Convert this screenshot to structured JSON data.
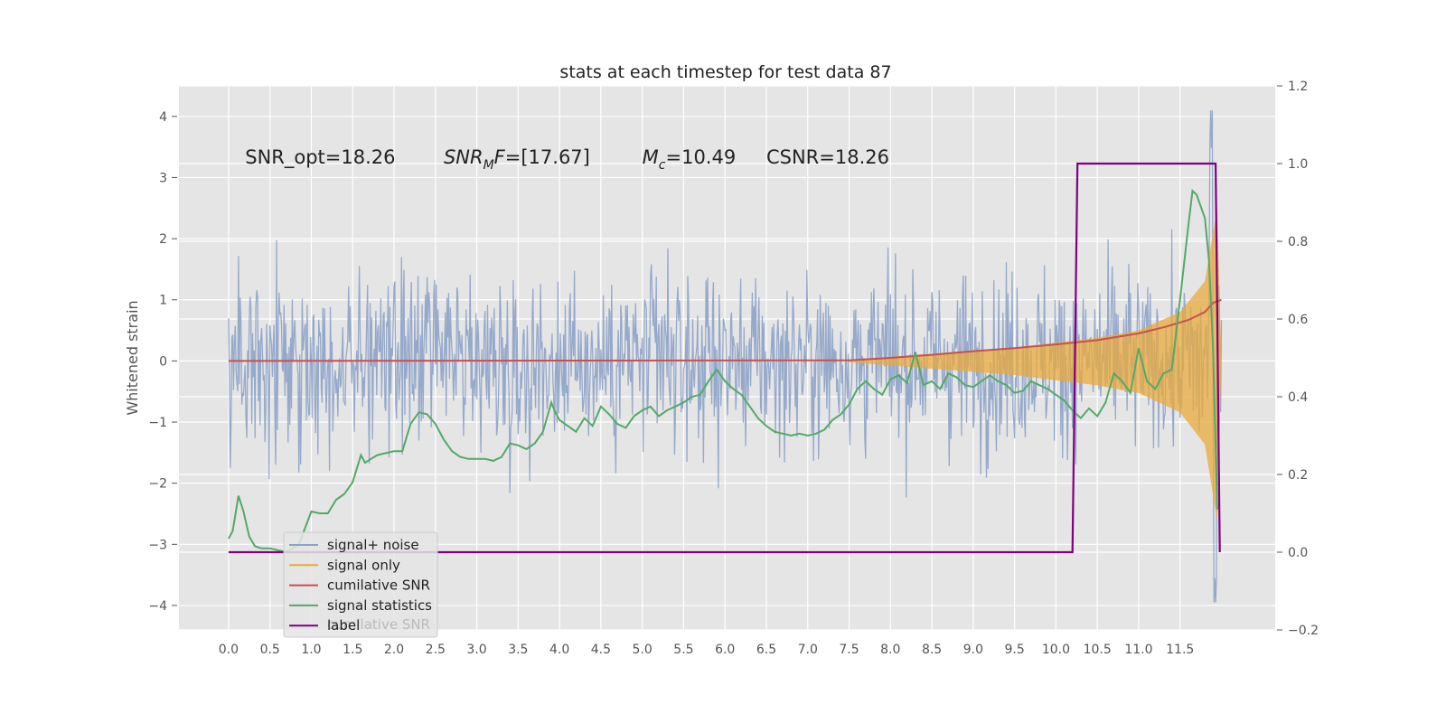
{
  "chart_data": {
    "type": "line",
    "title": "stats at each timestep for test data 87",
    "ylabel": "Whitened strain",
    "xlabel": "",
    "xlim": [
      -0.6,
      12.65
    ],
    "ylim": [
      -4.4,
      4.5
    ],
    "y2lim": [
      -0.2,
      1.2
    ],
    "xticks": [
      "0.0",
      "0.5",
      "1.0",
      "1.5",
      "2.0",
      "2.5",
      "3.0",
      "3.5",
      "4.0",
      "4.5",
      "5.0",
      "5.5",
      "6.0",
      "6.5",
      "7.0",
      "7.5",
      "8.0",
      "8.5",
      "9.0",
      "9.5",
      "10.0",
      "10.5",
      "11.0",
      "11.5"
    ],
    "yticks": [
      "4",
      "3",
      "2",
      "1",
      "0",
      "−1",
      "−2",
      "−3",
      "−4"
    ],
    "y2ticks": [
      "1.2",
      "1.0",
      "0.8",
      "0.6",
      "0.4",
      "0.2",
      "0.0",
      "−0.2"
    ],
    "grid": true,
    "legend_position": "lower-left",
    "annotations": [
      {
        "text": "SNR_opt=18.26",
        "x": 0.2,
        "y": 3.3
      },
      {
        "text": "SNR",
        "sub": "M",
        "tail": "F=[17.67]",
        "x": 2.6,
        "y": 3.3,
        "italic": true
      },
      {
        "text": "M",
        "sub": "c",
        "tail": "=10.49",
        "x": 5.0,
        "y": 3.3,
        "italic": true
      },
      {
        "text": "CSNR=18.26",
        "x": 6.5,
        "y": 3.3
      }
    ],
    "legend_ghost": "cumilative SNR",
    "series": [
      {
        "name": "signal+ noise",
        "axis": "left",
        "color": "#8da2c8",
        "envelope": {
          "x_range": [
            0.0,
            12.0
          ],
          "typical_amp": 1.8,
          "peak_max": 4.1,
          "peak_min": -3.95
        }
      },
      {
        "name": "signal only",
        "axis": "left",
        "color": "#e8a93c",
        "envelope_x": [
          7.5,
          8.5,
          9.5,
          10.0,
          10.5,
          11.0,
          11.5,
          11.8,
          11.95,
          12.0
        ],
        "envelope_amp": [
          0.02,
          0.12,
          0.22,
          0.3,
          0.38,
          0.5,
          0.8,
          1.3,
          2.5,
          0.0
        ]
      },
      {
        "name": "cumilative SNR",
        "axis": "left",
        "color": "#c9504d",
        "x": [
          0.0,
          7.5,
          8.0,
          8.5,
          9.0,
          9.5,
          10.0,
          10.5,
          11.0,
          11.3,
          11.6,
          11.8,
          11.9,
          12.0
        ],
        "y": [
          0.0,
          0.01,
          0.05,
          0.1,
          0.16,
          0.21,
          0.27,
          0.34,
          0.45,
          0.55,
          0.67,
          0.8,
          0.95,
          1.0
        ]
      },
      {
        "name": "signal statistics",
        "axis": "right",
        "color": "#55a868",
        "x": [
          0.0,
          0.05,
          0.12,
          0.18,
          0.25,
          0.32,
          0.4,
          0.5,
          0.6,
          0.7,
          0.85,
          1.0,
          1.1,
          1.2,
          1.3,
          1.4,
          1.5,
          1.6,
          1.65,
          1.72,
          1.8,
          1.9,
          2.0,
          2.1,
          2.2,
          2.3,
          2.4,
          2.5,
          2.6,
          2.7,
          2.8,
          2.9,
          3.0,
          3.1,
          3.2,
          3.3,
          3.4,
          3.5,
          3.6,
          3.7,
          3.8,
          3.9,
          3.95,
          4.0,
          4.1,
          4.2,
          4.3,
          4.4,
          4.5,
          4.6,
          4.7,
          4.8,
          4.9,
          5.0,
          5.1,
          5.2,
          5.3,
          5.4,
          5.5,
          5.6,
          5.7,
          5.8,
          5.9,
          6.0,
          6.1,
          6.2,
          6.3,
          6.4,
          6.5,
          6.6,
          6.7,
          6.8,
          6.9,
          7.0,
          7.1,
          7.2,
          7.3,
          7.4,
          7.5,
          7.6,
          7.7,
          7.8,
          7.9,
          8.0,
          8.1,
          8.2,
          8.3,
          8.4,
          8.5,
          8.6,
          8.7,
          8.8,
          8.9,
          9.0,
          9.1,
          9.2,
          9.3,
          9.4,
          9.5,
          9.6,
          9.7,
          9.8,
          9.9,
          10.0,
          10.1,
          10.2,
          10.3,
          10.4,
          10.5,
          10.6,
          10.7,
          10.8,
          10.9,
          11.0,
          11.1,
          11.2,
          11.3,
          11.4,
          11.5,
          11.6,
          11.65,
          11.7,
          11.8,
          11.85,
          11.9,
          11.95
        ],
        "y": [
          0.035,
          0.055,
          0.145,
          0.105,
          0.04,
          0.015,
          0.01,
          0.01,
          0.005,
          0.0,
          0.02,
          0.105,
          0.1,
          0.1,
          0.135,
          0.15,
          0.18,
          0.25,
          0.23,
          0.24,
          0.25,
          0.255,
          0.26,
          0.26,
          0.33,
          0.36,
          0.355,
          0.33,
          0.29,
          0.26,
          0.245,
          0.24,
          0.24,
          0.24,
          0.235,
          0.245,
          0.28,
          0.275,
          0.265,
          0.28,
          0.31,
          0.385,
          0.36,
          0.34,
          0.325,
          0.31,
          0.345,
          0.325,
          0.375,
          0.355,
          0.33,
          0.32,
          0.35,
          0.365,
          0.375,
          0.35,
          0.365,
          0.375,
          0.385,
          0.4,
          0.405,
          0.44,
          0.47,
          0.44,
          0.42,
          0.405,
          0.375,
          0.345,
          0.325,
          0.31,
          0.305,
          0.3,
          0.305,
          0.3,
          0.305,
          0.315,
          0.34,
          0.355,
          0.38,
          0.42,
          0.44,
          0.42,
          0.405,
          0.445,
          0.455,
          0.435,
          0.515,
          0.43,
          0.44,
          0.42,
          0.46,
          0.45,
          0.43,
          0.425,
          0.44,
          0.455,
          0.44,
          0.43,
          0.41,
          0.415,
          0.44,
          0.43,
          0.42,
          0.405,
          0.39,
          0.365,
          0.345,
          0.37,
          0.35,
          0.385,
          0.46,
          0.44,
          0.41,
          0.525,
          0.44,
          0.42,
          0.46,
          0.47,
          0.65,
          0.84,
          0.93,
          0.92,
          0.86,
          0.75,
          0.52,
          0.11
        ]
      },
      {
        "name": "label",
        "axis": "right",
        "color": "#800080",
        "x": [
          0.0,
          10.2,
          10.26,
          11.93,
          11.98
        ],
        "y": [
          0.0,
          0.0,
          1.0,
          1.0,
          0.0
        ]
      }
    ]
  }
}
